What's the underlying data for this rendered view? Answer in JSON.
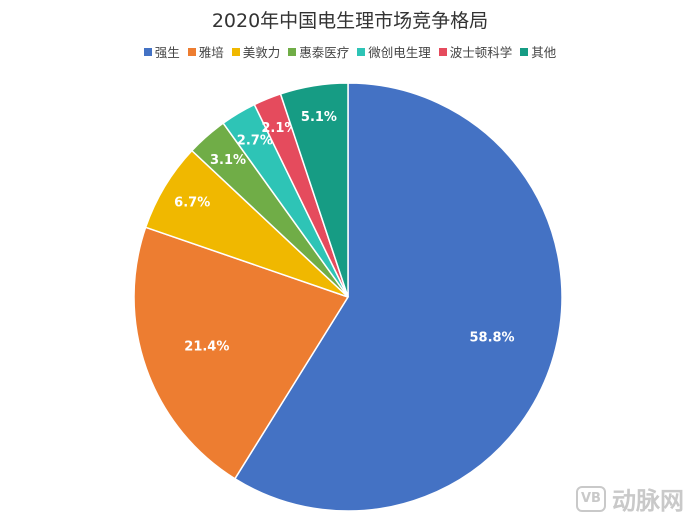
{
  "chart_data": {
    "type": "pie",
    "title": "2020年中国电生理市场竞争格局",
    "legend_position": "top",
    "start_angle_deg": 0,
    "direction": "clockwise",
    "slices": [
      {
        "name": "强生",
        "value": 58.8,
        "label": "58.8%",
        "color": "#4472c4"
      },
      {
        "name": "雅培",
        "value": 21.4,
        "label": "21.4%",
        "color": "#ed7d31"
      },
      {
        "name": "美敦力",
        "value": 6.7,
        "label": "6.7%",
        "color": "#f0b800"
      },
      {
        "name": "惠泰医疗",
        "value": 3.1,
        "label": "3.1%",
        "color": "#70ad47"
      },
      {
        "name": "微创电生理",
        "value": 2.7,
        "label": "2.7%",
        "color": "#2ec4b6"
      },
      {
        "name": "波士顿科学",
        "value": 2.1,
        "label": "2.1%",
        "color": "#e54b5d"
      },
      {
        "name": "其他",
        "value": 5.1,
        "label": "5.1%",
        "color": "#169c84"
      }
    ]
  },
  "watermark": {
    "logo_text": "VB",
    "text": "动脉网"
  }
}
